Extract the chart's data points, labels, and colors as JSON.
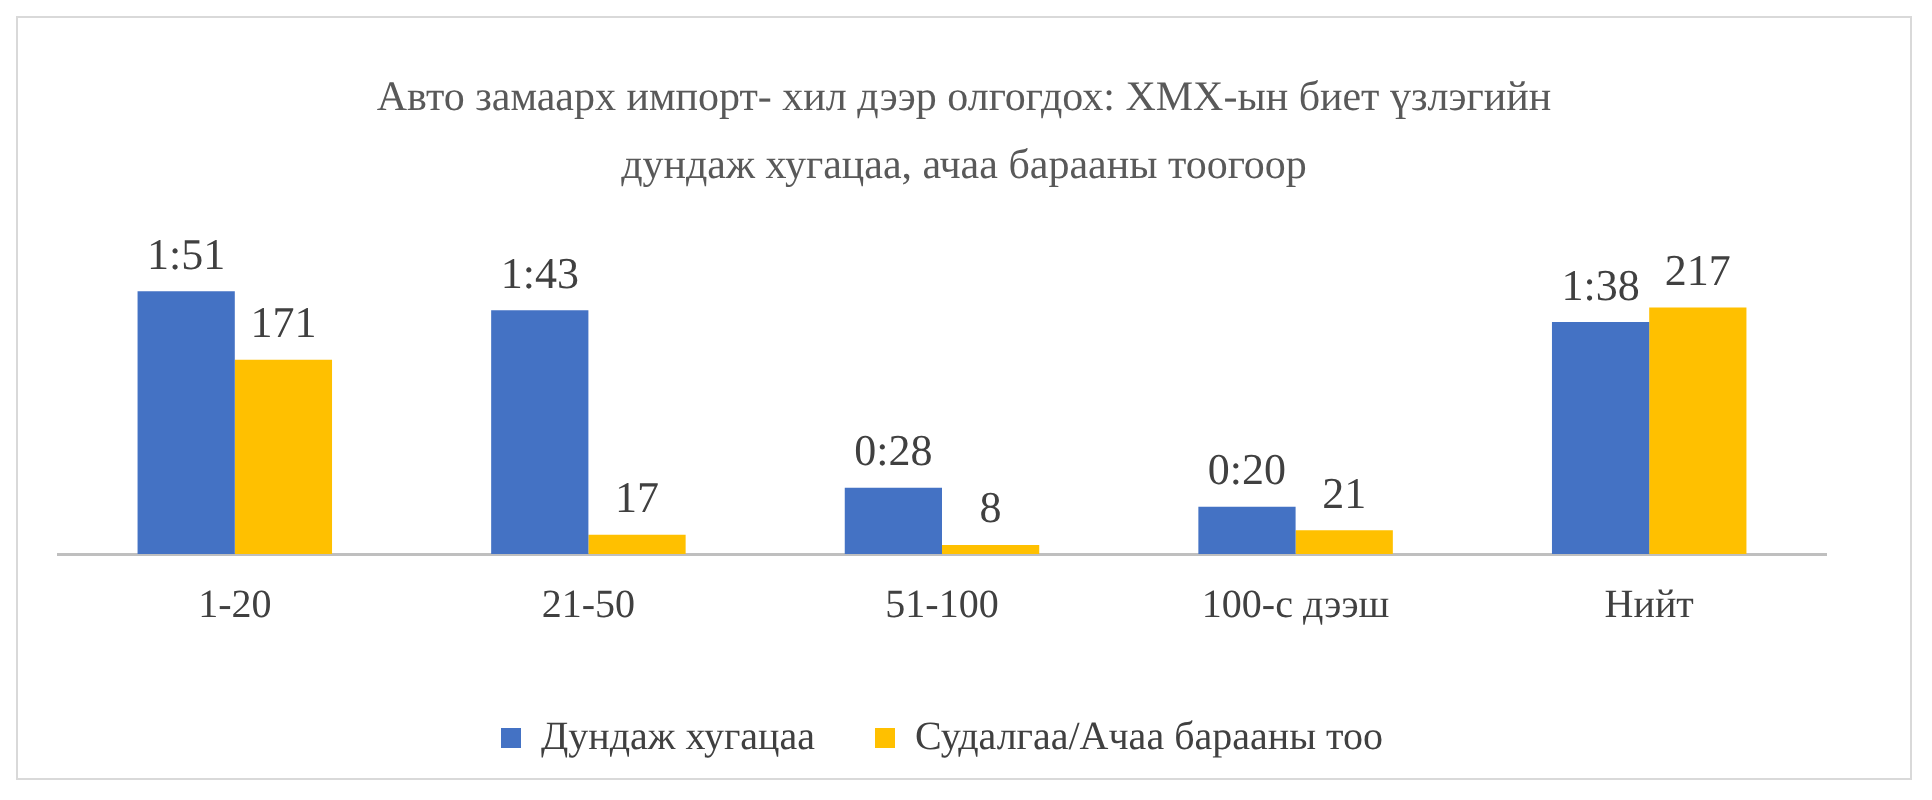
{
  "chart_data": {
    "type": "bar",
    "title": "Авто замаарх импорт- хил дээр олгогдох: ХМХ-ын биет үзлэгийн дундаж хугацаа, ачаа барааны тоогоор",
    "categories": [
      "1-20",
      "21-50",
      "51-100",
      "100-с дээш",
      "Нийт"
    ],
    "series": [
      {
        "name": "Дундаж хугацаа",
        "color": "#4472c4",
        "values": [
          1.85,
          1.7167,
          0.4667,
          0.3333,
          1.6333
        ],
        "value_labels": [
          "1:51",
          "1:43",
          "0:28",
          "0:20",
          "1:38"
        ]
      },
      {
        "name": "Судалгаа/Ачаа барааны тоо",
        "color": "#ffc000",
        "axis": "y2",
        "values": [
          171,
          17,
          8,
          21,
          217
        ],
        "value_labels": [
          "171",
          "17",
          "8",
          "21",
          "217"
        ]
      }
    ],
    "grid": false,
    "legend": "bottom"
  }
}
